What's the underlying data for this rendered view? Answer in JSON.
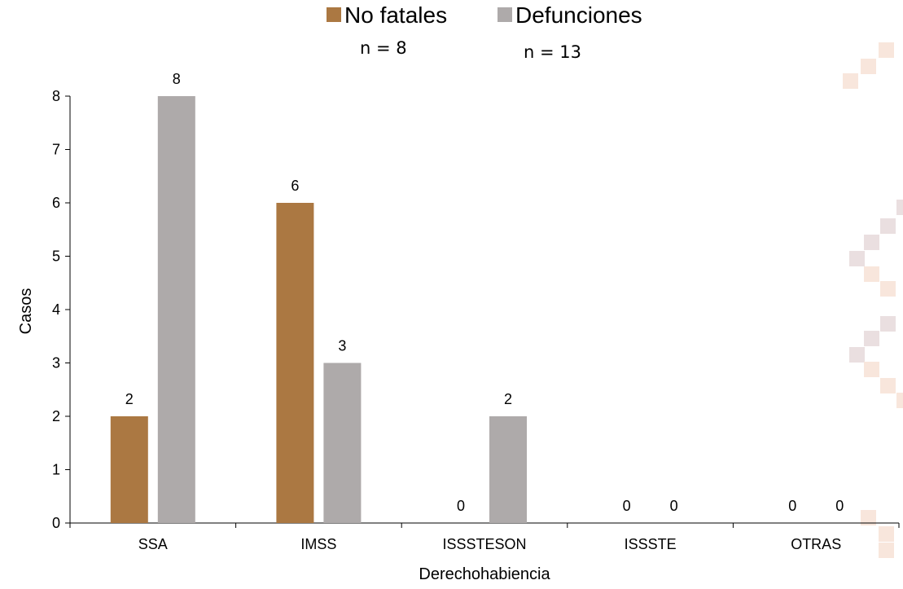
{
  "chart_data": {
    "type": "bar",
    "categories": [
      "SSA",
      "IMSS",
      "ISSSTESON",
      "ISSSTE",
      "OTRAS"
    ],
    "series": [
      {
        "name": "No fatales",
        "n_label": "n = 8",
        "color": "#ab7842",
        "values": [
          2,
          6,
          0,
          0,
          0
        ]
      },
      {
        "name": "Defunciones",
        "n_label": "n = 13",
        "color": "#aeaaaa",
        "values": [
          8,
          3,
          2,
          0,
          0
        ]
      }
    ],
    "xlabel": "Derechohabiencia",
    "ylabel": "Casos",
    "ylim": [
      0,
      8
    ],
    "yticks": [
      0,
      1,
      2,
      3,
      4,
      5,
      6,
      7,
      8
    ],
    "grid": false,
    "legend_position": "top-center",
    "data_labels": true,
    "decoration_colors": [
      "#f8e6dc",
      "#eadfe0"
    ]
  }
}
